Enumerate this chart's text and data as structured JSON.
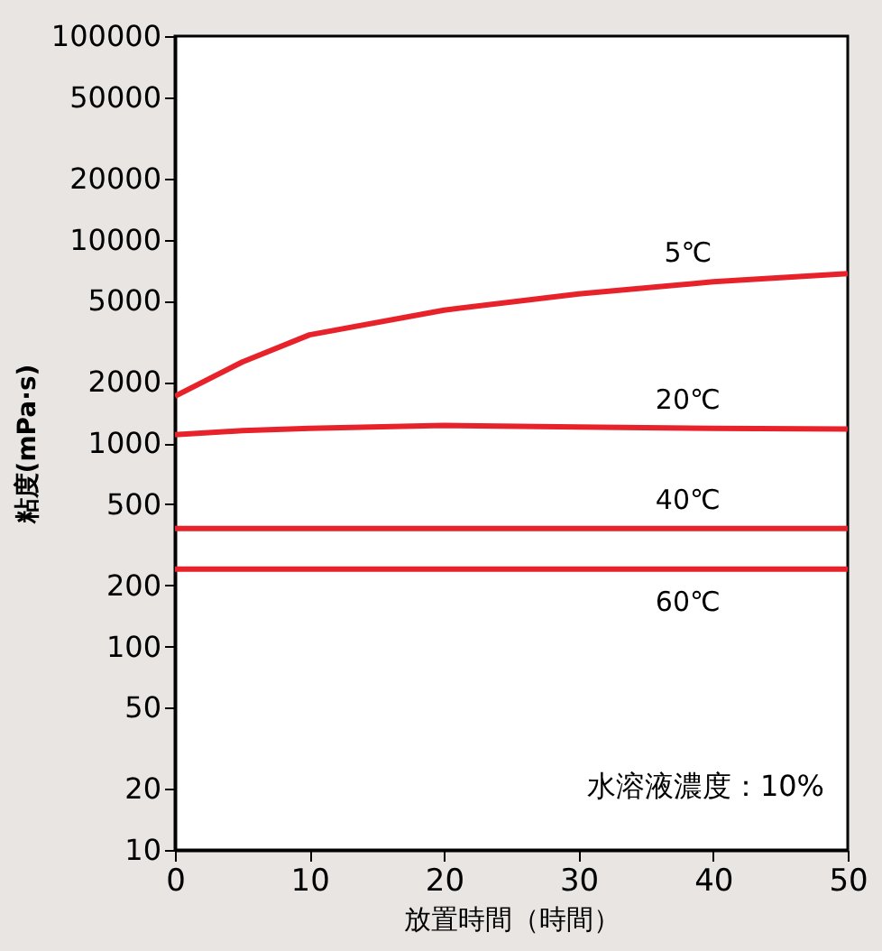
{
  "chart_data": {
    "type": "line",
    "xlabel": "放置時間（時間）",
    "ylabel": "粘度(mPa·s)",
    "x": [
      0,
      5,
      10,
      20,
      30,
      40,
      50
    ],
    "series": [
      {
        "name": "5℃",
        "color": "#e8222a",
        "values": [
          1700,
          2500,
          3400,
          4500,
          5400,
          6200,
          6800
        ]
      },
      {
        "name": "20℃",
        "color": "#e8222a",
        "values": [
          1100,
          1150,
          1180,
          1220,
          1200,
          1180,
          1170
        ]
      },
      {
        "name": "40℃",
        "color": "#e8222a",
        "values": [
          380,
          380,
          380,
          380,
          380,
          380,
          380
        ]
      },
      {
        "name": "60℃",
        "color": "#e8222a",
        "values": [
          240,
          240,
          240,
          240,
          240,
          240,
          240
        ]
      }
    ],
    "log": "y",
    "xlim": [
      0,
      50
    ],
    "xticks": [
      0,
      10,
      20,
      30,
      40,
      50
    ],
    "ylim": [
      10,
      100000
    ],
    "yticks": [
      10,
      20,
      50,
      100,
      200,
      500,
      1000,
      2000,
      5000,
      10000,
      20000,
      50000,
      100000
    ],
    "grid": false,
    "marker": "none",
    "line_style": "solid",
    "annotations": [
      "水溶液濃度：10%"
    ]
  }
}
